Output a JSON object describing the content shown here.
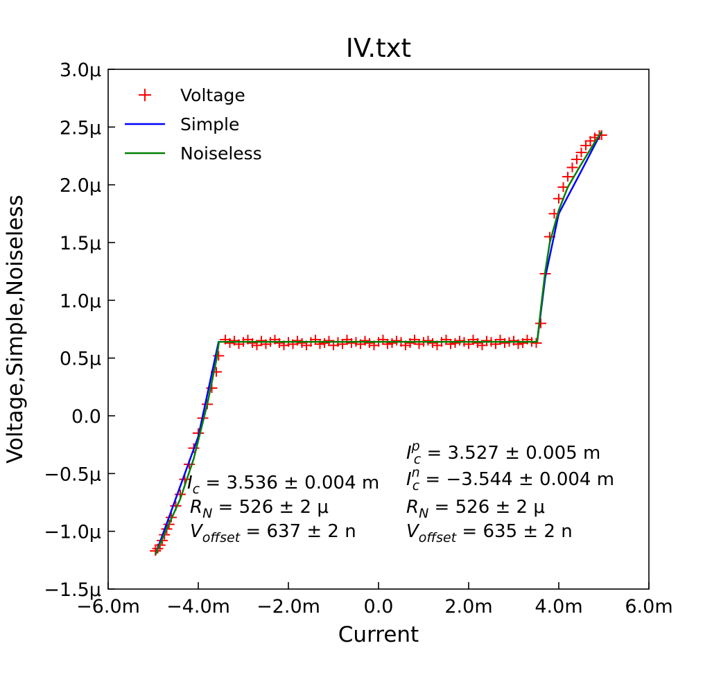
{
  "chart_data": {
    "type": "line",
    "title": "IV.txt",
    "xlabel": "Current",
    "ylabel": "Voltage,Simple,Noiseless",
    "xlim": [
      -0.006,
      0.006
    ],
    "ylim": [
      -1.5e-06,
      3e-06
    ],
    "x_ticks": [
      -0.006,
      -0.004,
      -0.002,
      0.0,
      0.002,
      0.004,
      0.006
    ],
    "x_tick_labels": [
      "−6.0m",
      "−4.0m",
      "−2.0m",
      "0.0",
      "2.0m",
      "4.0m",
      "6.0m"
    ],
    "y_ticks": [
      -1.5e-06,
      -1e-06,
      -5e-07,
      0.0,
      5e-07,
      1e-06,
      1.5e-06,
      2e-06,
      2.5e-06,
      3e-06
    ],
    "y_tick_labels": [
      "−1.5μ",
      "−1.0μ",
      "−0.5μ",
      "0.0",
      "0.5μ",
      "1.0μ",
      "1.5μ",
      "2.0μ",
      "2.5μ",
      "3.0μ"
    ],
    "grid": false,
    "legend_position": "top-left",
    "series": [
      {
        "name": "Voltage",
        "style": "markers",
        "marker": "+",
        "color": "#ff0000",
        "x": [
          -0.00495,
          -0.0049,
          -0.00485,
          -0.0048,
          -0.00475,
          -0.0047,
          -0.00465,
          -0.0046,
          -0.0045,
          -0.0044,
          -0.0043,
          -0.0042,
          -0.0041,
          -0.004,
          -0.0039,
          -0.0038,
          -0.0037,
          -0.0036,
          -0.00355,
          -0.0034,
          -0.0033,
          -0.0032,
          -0.0031,
          -0.003,
          -0.0029,
          -0.0028,
          -0.0027,
          -0.0026,
          -0.0025,
          -0.0024,
          -0.0023,
          -0.0022,
          -0.0021,
          -0.002,
          -0.0019,
          -0.0018,
          -0.0017,
          -0.0016,
          -0.0015,
          -0.0014,
          -0.0013,
          -0.0012,
          -0.0011,
          -0.001,
          -0.0009,
          -0.0008,
          -0.0007,
          -0.0006,
          -0.0005,
          -0.0004,
          -0.0003,
          -0.0002,
          -0.0001,
          0.0,
          0.0001,
          0.0002,
          0.0003,
          0.0004,
          0.0005,
          0.0006,
          0.0007,
          0.0008,
          0.0009,
          0.001,
          0.0011,
          0.0012,
          0.0013,
          0.0014,
          0.0015,
          0.0016,
          0.0017,
          0.0018,
          0.0019,
          0.002,
          0.0021,
          0.0022,
          0.0023,
          0.0024,
          0.0025,
          0.0026,
          0.0027,
          0.0028,
          0.0029,
          0.003,
          0.0031,
          0.0032,
          0.0033,
          0.0034,
          0.0035,
          0.0036,
          0.0037,
          0.0038,
          0.0039,
          0.004,
          0.0041,
          0.0042,
          0.0043,
          0.0044,
          0.0045,
          0.0046,
          0.0047,
          0.0048,
          0.0049,
          0.00495
        ],
        "y": [
          -1.17e-06,
          -1.15e-06,
          -1.12e-06,
          -1.08e-06,
          -1.03e-06,
          -9.8e-07,
          -9.4e-07,
          -8.8e-07,
          -7.8e-07,
          -6.8e-07,
          -5.5e-07,
          -4.2e-07,
          -2.8e-07,
          -1.5e-07,
          -2e-08,
          1e-07,
          2.4e-07,
          3.8e-07,
          5.2e-07,
          6.6e-07,
          6.3e-07,
          6.5e-07,
          6.2e-07,
          6.4e-07,
          6.6e-07,
          6.3e-07,
          6.1e-07,
          6.5e-07,
          6.2e-07,
          6.4e-07,
          6.6e-07,
          6.3e-07,
          6.1e-07,
          6.4e-07,
          6.2e-07,
          6.5e-07,
          6.3e-07,
          6.1e-07,
          6.4e-07,
          6.6e-07,
          6.2e-07,
          6.3e-07,
          6.5e-07,
          6.1e-07,
          6.4e-07,
          6.2e-07,
          6.6e-07,
          6.3e-07,
          6.4e-07,
          6.2e-07,
          6.5e-07,
          6.3e-07,
          6.1e-07,
          6.4e-07,
          6.6e-07,
          6.2e-07,
          6.3e-07,
          6.5e-07,
          6.4e-07,
          6.1e-07,
          6.3e-07,
          6.6e-07,
          6.2e-07,
          6.4e-07,
          6.5e-07,
          6.3e-07,
          6.1e-07,
          6.4e-07,
          6.6e-07,
          6.2e-07,
          6.3e-07,
          6.5e-07,
          6.4e-07,
          6.2e-07,
          6.6e-07,
          6.3e-07,
          6.1e-07,
          6.5e-07,
          6.4e-07,
          6.2e-07,
          6.6e-07,
          6.3e-07,
          6.4e-07,
          6.5e-07,
          6.2e-07,
          6.3e-07,
          6.6e-07,
          6.4e-07,
          6.3e-07,
          8e-07,
          1.23e-06,
          1.55e-06,
          1.75e-06,
          1.88e-06,
          1.98e-06,
          2.07e-06,
          2.15e-06,
          2.22e-06,
          2.28e-06,
          2.34e-06,
          2.38e-06,
          2.41e-06,
          2.43e-06,
          2.43e-06
        ]
      },
      {
        "name": "Simple",
        "style": "line",
        "color": "#0000ff",
        "x": [
          -0.00495,
          -0.004,
          -0.00355,
          0.0,
          0.00352,
          0.0037,
          0.004,
          0.0045,
          0.00495
        ],
        "y": [
          -1.2e-06,
          -1.8e-07,
          6.4e-07,
          6.4e-07,
          6.4e-07,
          1.2e-06,
          1.75e-06,
          2.12e-06,
          2.46e-06
        ]
      },
      {
        "name": "Noiseless",
        "style": "line",
        "color": "#008000",
        "x": [
          -0.00495,
          -0.0047,
          -0.0044,
          -0.0041,
          -0.0038,
          -0.0036,
          -0.00354,
          0.0,
          0.00352,
          0.0036,
          0.0037,
          0.0038,
          0.004,
          0.0042,
          0.0045,
          0.0048,
          0.00495
        ],
        "y": [
          -1.2e-06,
          -9.8e-07,
          -7.2e-07,
          -3.7e-07,
          1e-07,
          4.8e-07,
          6.4e-07,
          6.4e-07,
          6.4e-07,
          9.2e-07,
          1.25e-06,
          1.5e-06,
          1.78e-06,
          1.98e-06,
          2.18e-06,
          2.37e-06,
          2.46e-06
        ]
      }
    ],
    "annotations": {
      "left": {
        "ic_var": "I",
        "ic_sub": "c",
        "ic_value": " = 3.536 ± 0.004 m",
        "rn_var": "R",
        "rn_sub": "N",
        "rn_value": " = 526 ± 2 μ",
        "voff_var": "V",
        "voff_sub": "offset",
        "voff_value": " = 637 ± 2 n"
      },
      "right": {
        "icp_var": "I",
        "icp_sup": "p",
        "icp_sub": "c",
        "icp_value": " = 3.527 ± 0.005 m",
        "icn_var": "I",
        "icn_sup": "n",
        "icn_sub": "c",
        "icn_value": " = −3.544 ± 0.004 m",
        "rn_var": "R",
        "rn_sub": "N",
        "rn_value": " = 526 ± 2 μ",
        "voff_var": "V",
        "voff_sub": "offset",
        "voff_value": " = 635 ± 2 n"
      }
    }
  }
}
